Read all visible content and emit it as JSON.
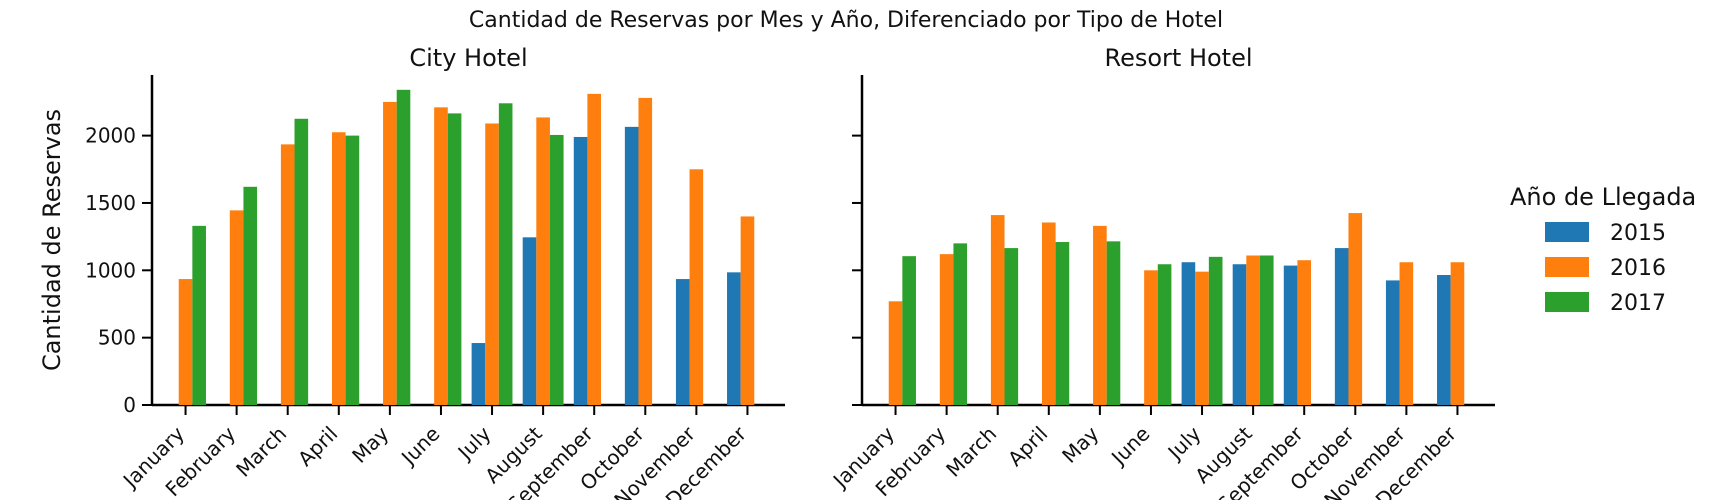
{
  "chart_data": {
    "type": "bar",
    "title": "Cantidad de Reservas por Mes y Año, Diferenciado por Tipo de Hotel",
    "ylabel": "Cantidad de Reservas",
    "xlabel": "",
    "ylim": [
      0,
      2450
    ],
    "yticks": [
      0,
      500,
      1000,
      1500,
      2000
    ],
    "categories": [
      "January",
      "February",
      "March",
      "April",
      "May",
      "June",
      "July",
      "August",
      "September",
      "October",
      "November",
      "December"
    ],
    "legend": {
      "title": "Año de Llegada",
      "placement": "right"
    },
    "series_colors": {
      "2015": "#1f77b4",
      "2016": "#ff7f0e",
      "2017": "#2ca02c"
    },
    "facets": [
      {
        "title": "City Hotel",
        "series": [
          {
            "name": "2015",
            "values": [
              null,
              null,
              null,
              null,
              null,
              null,
              460,
              1245,
              1990,
              2065,
              935,
              985
            ]
          },
          {
            "name": "2016",
            "values": [
              935,
              1445,
              1935,
              2025,
              2250,
              2210,
              2090,
              2135,
              2310,
              2280,
              1750,
              1400
            ]
          },
          {
            "name": "2017",
            "values": [
              1330,
              1620,
              2125,
              2000,
              2340,
              2165,
              2240,
              2005,
              null,
              null,
              null,
              null
            ]
          }
        ]
      },
      {
        "title": "Resort Hotel",
        "series": [
          {
            "name": "2015",
            "values": [
              null,
              null,
              null,
              null,
              null,
              null,
              1060,
              1045,
              1035,
              1165,
              925,
              965
            ]
          },
          {
            "name": "2016",
            "values": [
              770,
              1120,
              1410,
              1355,
              1330,
              1000,
              990,
              1110,
              1075,
              1425,
              1060,
              1060
            ]
          },
          {
            "name": "2017",
            "values": [
              1105,
              1200,
              1165,
              1210,
              1215,
              1045,
              1100,
              1110,
              null,
              null,
              null,
              null
            ]
          }
        ]
      }
    ]
  }
}
